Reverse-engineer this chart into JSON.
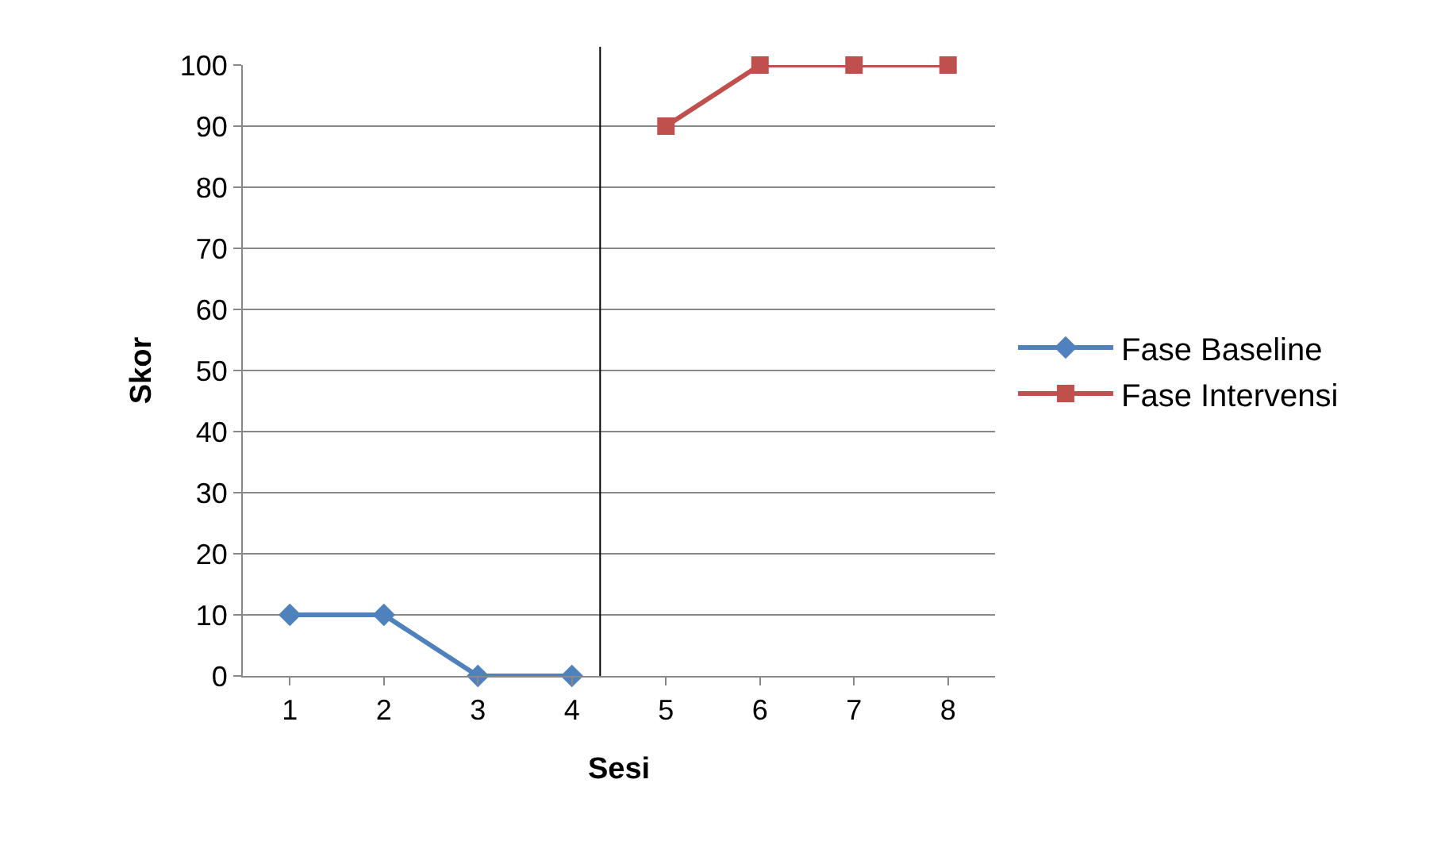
{
  "chart_data": {
    "type": "line",
    "xlabel": "Sesi",
    "ylabel": "Skor",
    "series": [
      {
        "name": "Fase Baseline",
        "color": "#4f81bd",
        "marker": "diamond",
        "x": [
          1,
          2,
          3,
          4
        ],
        "values": [
          10,
          10,
          0,
          0
        ]
      },
      {
        "name": "Fase Intervensi",
        "color": "#c0504d",
        "marker": "square",
        "x": [
          5,
          6,
          7,
          8
        ],
        "values": [
          90,
          100,
          100,
          100
        ]
      }
    ],
    "xlim": [
      0.5,
      8.5
    ],
    "xticks": [
      1,
      2,
      3,
      4,
      5,
      6,
      7,
      8
    ],
    "ylim": [
      0,
      100
    ],
    "yticks": [
      0,
      10,
      20,
      30,
      40,
      50,
      60,
      70,
      80,
      90,
      100
    ],
    "ref_lines": [
      {
        "axis": "x",
        "value": 4.3,
        "color": "#000000"
      }
    ],
    "grid": "y",
    "legend": "right"
  }
}
